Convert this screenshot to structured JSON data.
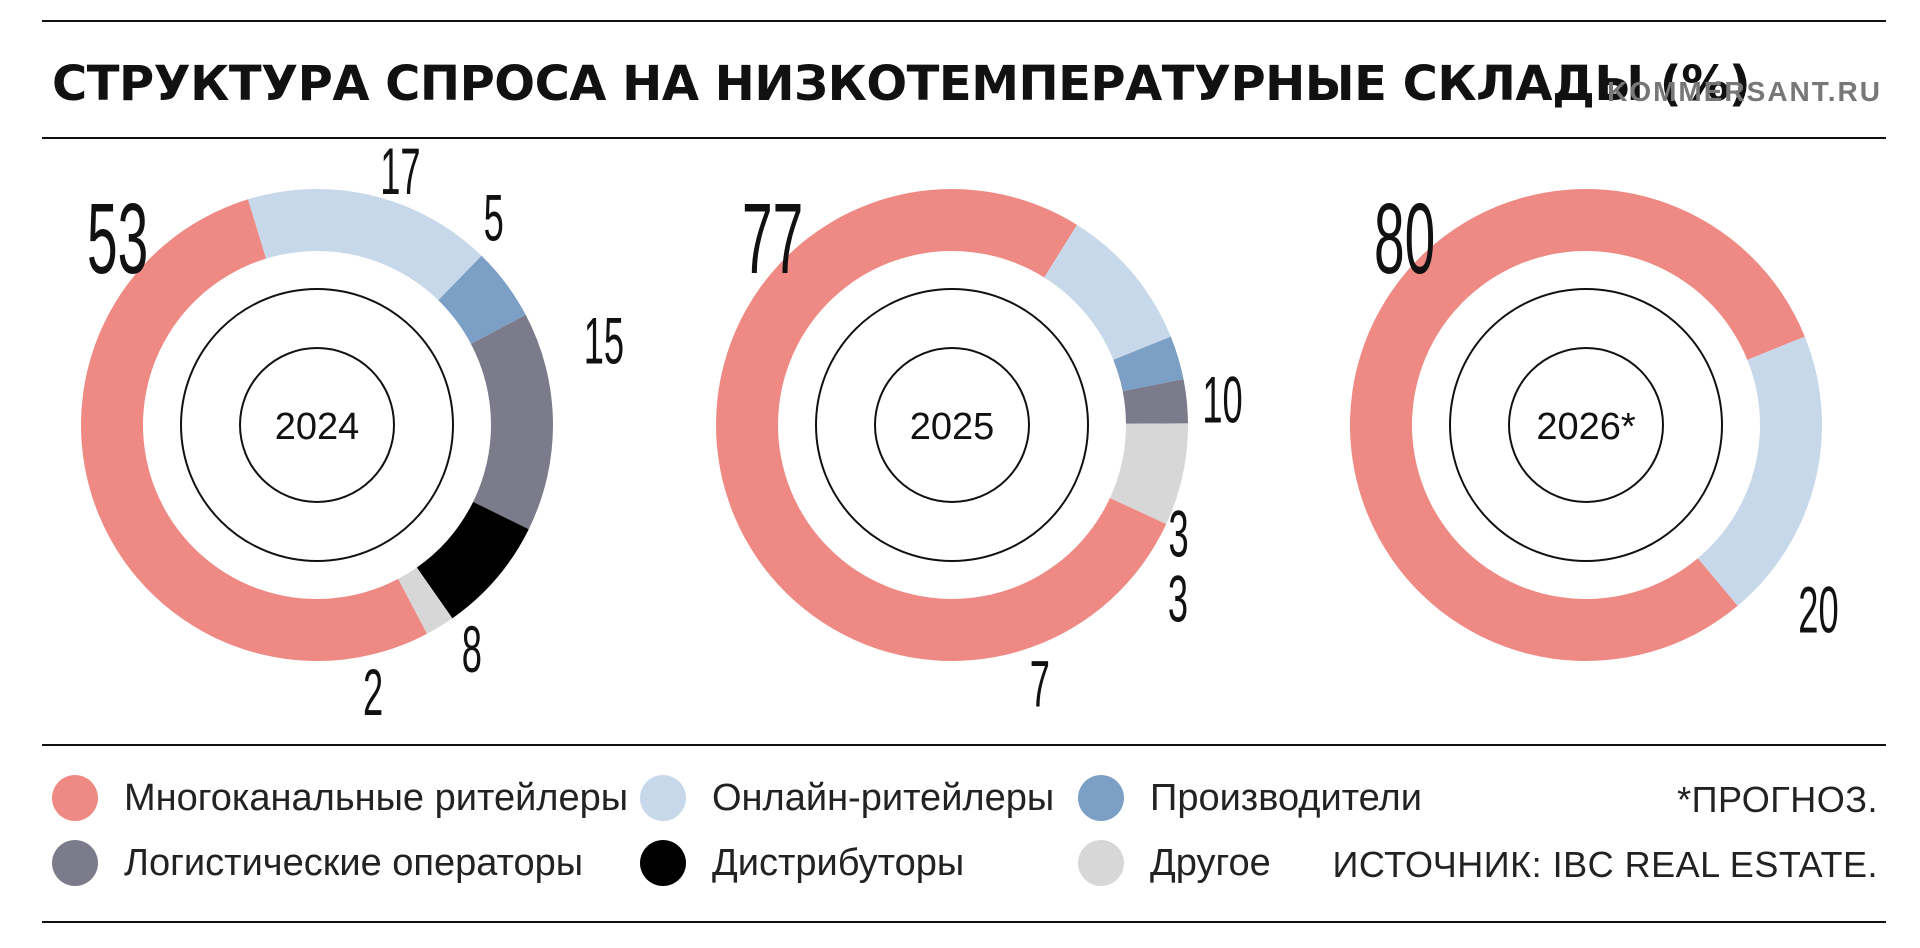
{
  "header": {
    "title": "СТРУКТУРА СПРОСА НА НИЗКОТЕМПЕРАТУРНЫЕ СКЛАДЫ (%)",
    "site": "KOMMERSANT.RU"
  },
  "colors": {
    "Многоканальные ритейлеры": "#ef8983",
    "Онлайн-ритейлеры": "#c7d8ea",
    "Производители": "#7b9fc5",
    "Логистические операторы": "#7c7b8b",
    "Дистрибуторы": "#000000",
    "Другое": "#d7d7d7"
  },
  "chart_data": [
    {
      "type": "pie",
      "title": "2024",
      "slices": [
        {
          "label": "Многоканальные ритейлеры",
          "value": 53
        },
        {
          "label": "Онлайн-ритейлеры",
          "value": 17
        },
        {
          "label": "Производители",
          "value": 5
        },
        {
          "label": "Логистические операторы",
          "value": 15
        },
        {
          "label": "Дистрибуторы",
          "value": 8
        },
        {
          "label": "Другое",
          "value": 2
        }
      ]
    },
    {
      "type": "pie",
      "title": "2025",
      "slices": [
        {
          "label": "Многоканальные ритейлеры",
          "value": 77
        },
        {
          "label": "Онлайн-ритейлеры",
          "value": 10
        },
        {
          "label": "Производители",
          "value": 3
        },
        {
          "label": "Логистические операторы",
          "value": 3
        },
        {
          "label": "Другое",
          "value": 7
        }
      ]
    },
    {
      "type": "pie",
      "title": "2026*",
      "slices": [
        {
          "label": "Многоканальные ритейлеры",
          "value": 80
        },
        {
          "label": "Онлайн-ритейлеры",
          "value": 20
        }
      ]
    }
  ],
  "legend": [
    {
      "label": "Многоканальные ритейлеры",
      "color": "#ef8983"
    },
    {
      "label": "Онлайн-ритейлеры",
      "color": "#c7d8ea"
    },
    {
      "label": "Производители",
      "color": "#7b9fc5"
    },
    {
      "label": "Логистические операторы",
      "color": "#7c7b8b"
    },
    {
      "label": "Дистрибуторы",
      "color": "#000000"
    },
    {
      "label": "Другое",
      "color": "#d7d7d7"
    }
  ],
  "footnote": "*ПРОГНОЗ.",
  "source": "ИСТОЧНИК: IBC REAL ESTATE."
}
